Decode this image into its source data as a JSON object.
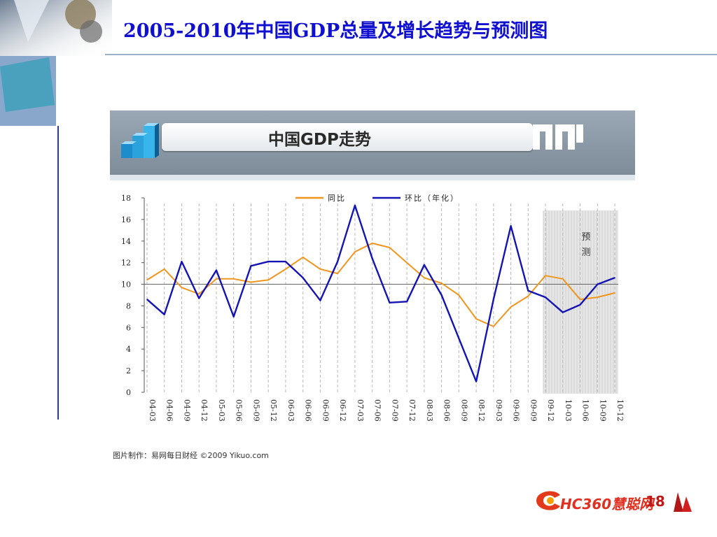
{
  "slide": {
    "title": "2005-2010年中国GDP总量及增长趋势与预测图",
    "source": "图片制作：易网每日财经 ©2009 Yikuo.com",
    "logo_text": "HC360慧聪网",
    "logo_suffix": "18"
  },
  "chart_data": {
    "type": "line",
    "title": "中国GDP走势",
    "xlabel": "",
    "ylabel": "",
    "x": [
      "04-03",
      "04-06",
      "04-09",
      "04-12",
      "05-03",
      "05-06",
      "05-09",
      "05-12",
      "06-03",
      "06-06",
      "06-09",
      "06-12",
      "07-03",
      "07-06",
      "07-09",
      "07-12",
      "08-03",
      "08-06",
      "08-09",
      "08-12",
      "09-03",
      "09-06",
      "09-09",
      "09-12",
      "10-03",
      "10-06",
      "10-09",
      "10-12"
    ],
    "ylim": [
      0,
      18
    ],
    "yticks": [
      0,
      2,
      4,
      6,
      8,
      10,
      12,
      14,
      16,
      18
    ],
    "reference_line": 10,
    "grid": "vertical dashed",
    "legend_position": "top-center",
    "forecast_start": "09-12",
    "forecast_label": "预测",
    "series": [
      {
        "name": "同比",
        "color": "#f0961e",
        "values": [
          10.4,
          11.4,
          9.7,
          9.1,
          10.5,
          10.5,
          10.2,
          10.4,
          11.4,
          12.5,
          11.4,
          11.0,
          13.0,
          13.8,
          13.4,
          12.0,
          10.6,
          10.1,
          9.0,
          6.8,
          6.1,
          7.9,
          8.9,
          10.8,
          10.5,
          8.6,
          8.8,
          9.2
        ]
      },
      {
        "name": "环比（年化）",
        "color": "#1414b4",
        "values": [
          8.6,
          7.2,
          12.1,
          8.7,
          11.3,
          7.0,
          11.7,
          12.1,
          12.1,
          10.6,
          8.5,
          12.1,
          17.3,
          12.4,
          8.3,
          8.4,
          11.8,
          9.0,
          5.0,
          1.0,
          8.6,
          15.4,
          9.4,
          8.8,
          7.4,
          8.1,
          10.0,
          10.6
        ]
      }
    ]
  }
}
